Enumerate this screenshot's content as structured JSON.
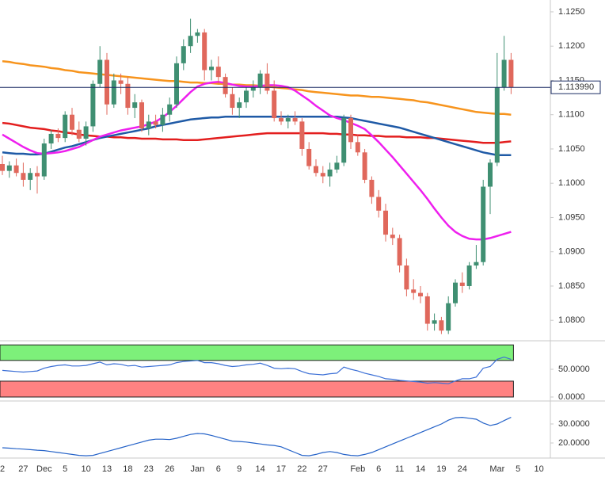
{
  "chart_data": [
    {
      "type": "candlestick",
      "categories": [
        "2",
        null,
        null,
        "27",
        null,
        null,
        "Dec",
        null,
        null,
        "5",
        null,
        null,
        "10",
        null,
        null,
        "13",
        null,
        null,
        "18",
        null,
        null,
        "23",
        null,
        null,
        "26",
        null,
        null,
        null,
        "Jan",
        null,
        null,
        "6",
        null,
        null,
        "9",
        null,
        null,
        "14",
        null,
        null,
        "17",
        null,
        null,
        "22",
        null,
        null,
        "27",
        null,
        null,
        null,
        null,
        "Feb",
        null,
        null,
        "6",
        null,
        null,
        "11",
        null,
        null,
        "14",
        null,
        null,
        "19",
        null,
        null,
        "24",
        null,
        null,
        null,
        null,
        "Mar",
        null,
        null,
        "5",
        null,
        null,
        "10"
      ],
      "open": [
        1.1028,
        1.1018,
        1.1026,
        1.1015,
        1.1005,
        1.1015,
        1.101,
        1.1058,
        1.1072,
        1.1066,
        1.11,
        1.1078,
        1.1065,
        1.1083,
        1.1145,
        1.118,
        1.1115,
        1.115,
        1.1145,
        1.111,
        1.1118,
        1.108,
        1.109,
        1.1085,
        1.11,
        1.1115,
        1.1175,
        1.12,
        1.1215,
        1.122,
        1.1165,
        1.117,
        1.1155,
        1.113,
        1.111,
        1.1118,
        1.1135,
        1.114,
        1.116,
        1.1135,
        1.1095,
        1.109,
        1.1095,
        1.109,
        1.105,
        1.1025,
        1.1015,
        1.101,
        1.102,
        1.103,
        1.1095,
        1.106,
        1.1045,
        1.1005,
        1.098,
        1.096,
        1.0925,
        1.092,
        1.088,
        1.0845,
        1.084,
        1.0835,
        1.0795,
        1.08,
        1.0785,
        1.0825,
        1.0855,
        1.085,
        1.088,
        1.0885,
        1.0995,
        1.103,
        1.114,
        1.118,
        null,
        null,
        null,
        null
      ],
      "high": [
        1.104,
        1.1032,
        1.1036,
        1.103,
        1.1022,
        1.1025,
        1.1065,
        1.1078,
        1.108,
        1.1105,
        1.111,
        1.109,
        1.109,
        1.115,
        1.12,
        1.119,
        1.116,
        1.116,
        1.1155,
        1.113,
        1.1122,
        1.11,
        1.11,
        1.111,
        1.1125,
        1.1185,
        1.121,
        1.124,
        1.1225,
        1.1225,
        1.118,
        1.1185,
        1.116,
        1.114,
        1.1125,
        1.114,
        1.115,
        1.1165,
        1.1175,
        1.115,
        1.1105,
        1.11,
        1.1105,
        1.1095,
        1.106,
        1.1035,
        1.1025,
        1.103,
        1.104,
        1.11,
        1.11,
        1.107,
        1.105,
        1.101,
        1.099,
        1.097,
        1.0935,
        1.0925,
        1.089,
        1.086,
        1.085,
        1.084,
        1.081,
        1.0805,
        1.0835,
        1.086,
        1.087,
        1.0885,
        1.091,
        1.1005,
        1.1035,
        1.119,
        1.1215,
        1.119,
        null,
        null,
        null,
        null
      ],
      "low": [
        1.1012,
        1.1008,
        1.101,
        1.0995,
        1.099,
        1.0985,
        1.1005,
        1.105,
        1.106,
        1.106,
        1.107,
        1.106,
        1.1055,
        1.1075,
        1.114,
        1.11,
        1.111,
        1.113,
        1.11,
        1.1095,
        1.1075,
        1.107,
        1.108,
        1.1075,
        1.109,
        1.111,
        1.1165,
        1.119,
        1.1205,
        1.115,
        1.115,
        1.1145,
        1.1125,
        1.11,
        1.1095,
        1.111,
        1.1125,
        1.113,
        1.113,
        1.109,
        1.1085,
        1.108,
        1.1085,
        1.104,
        1.102,
        1.101,
        1.1,
        1.0995,
        1.1015,
        1.1025,
        1.105,
        1.104,
        1.1,
        1.097,
        1.095,
        1.0915,
        1.091,
        1.087,
        1.0835,
        1.083,
        1.0825,
        1.0785,
        1.0785,
        1.078,
        1.078,
        1.082,
        1.084,
        1.0845,
        1.0875,
        1.088,
        1.0955,
        1.1025,
        1.1135,
        1.113,
        null,
        null,
        null,
        null
      ],
      "close": [
        1.1018,
        1.1026,
        1.1015,
        1.1005,
        1.1015,
        1.101,
        1.1058,
        1.1072,
        1.1066,
        1.11,
        1.1078,
        1.1065,
        1.1083,
        1.1145,
        1.118,
        1.1115,
        1.115,
        1.1145,
        1.111,
        1.1118,
        1.108,
        1.109,
        1.1085,
        1.11,
        1.1115,
        1.1175,
        1.12,
        1.1215,
        1.122,
        1.1165,
        1.117,
        1.1155,
        1.113,
        1.111,
        1.1118,
        1.1135,
        1.114,
        1.116,
        1.1135,
        1.1095,
        1.109,
        1.1095,
        1.109,
        1.105,
        1.1025,
        1.1015,
        1.101,
        1.102,
        1.103,
        1.1095,
        1.106,
        1.1045,
        1.1005,
        1.098,
        1.096,
        1.0925,
        1.092,
        1.088,
        1.0845,
        1.084,
        1.0835,
        1.0795,
        1.08,
        1.0785,
        1.0825,
        1.0855,
        1.085,
        1.088,
        1.0885,
        1.0995,
        1.103,
        1.114,
        1.118,
        1.11399,
        null,
        null,
        null,
        null
      ],
      "up_color": "#3f8f72",
      "down_color": "#e0685c",
      "series": [
        {
          "color": "#f7941d",
          "values": [
            1.1178,
            1.1177,
            1.1175,
            1.1174,
            1.1172,
            1.1171,
            1.117,
            1.1168,
            1.1167,
            1.1165,
            1.1164,
            1.1162,
            1.1161,
            1.116,
            1.1159,
            1.1158,
            1.1157,
            1.1156,
            1.1155,
            1.1154,
            1.1153,
            1.1152,
            1.1151,
            1.115,
            1.1149,
            1.1149,
            1.1148,
            1.1147,
            1.1147,
            1.1146,
            1.1146,
            1.1145,
            1.1145,
            1.1144,
            1.1144,
            1.1143,
            1.1143,
            1.1142,
            1.1141,
            1.114,
            1.1139,
            1.1138,
            1.1137,
            1.1136,
            1.1134,
            1.1133,
            1.1132,
            1.1131,
            1.113,
            1.1129,
            1.1128,
            1.1128,
            1.1127,
            1.1126,
            1.1126,
            1.1125,
            1.1124,
            1.1123,
            1.1122,
            1.1121,
            1.1119,
            1.1118,
            1.1116,
            1.1114,
            1.1112,
            1.111,
            1.1108,
            1.1106,
            1.1104,
            1.1103,
            1.1102,
            1.1101,
            1.1101,
            1.11,
            null,
            null,
            null,
            null
          ]
        },
        {
          "color": "#e31e1e",
          "values": [
            1.1088,
            1.1087,
            1.1085,
            1.1083,
            1.1081,
            1.108,
            1.1079,
            1.1077,
            1.1076,
            1.1074,
            1.1073,
            1.1071,
            1.107,
            1.1069,
            1.1068,
            1.1068,
            1.1067,
            1.1067,
            1.1066,
            1.1066,
            1.1065,
            1.1065,
            1.1065,
            1.1064,
            1.1064,
            1.1064,
            1.1063,
            1.1063,
            1.1063,
            1.1064,
            1.1065,
            1.1066,
            1.1067,
            1.1068,
            1.1069,
            1.107,
            1.1071,
            1.1072,
            1.1073,
            1.1073,
            1.1073,
            1.1073,
            1.1073,
            1.1073,
            1.1073,
            1.1073,
            1.1073,
            1.1072,
            1.1072,
            1.1071,
            1.1071,
            1.107,
            1.107,
            1.1069,
            1.1069,
            1.1068,
            1.1068,
            1.1068,
            1.1067,
            1.1067,
            1.1067,
            1.1066,
            1.1066,
            1.1065,
            1.1064,
            1.1063,
            1.1062,
            1.1061,
            1.106,
            1.1059,
            1.1059,
            1.1059,
            1.106,
            1.1061,
            null,
            null,
            null,
            null
          ]
        },
        {
          "color": "#1f5aa6",
          "values": [
            1.1045,
            1.1044,
            1.1043,
            1.1043,
            1.1042,
            1.1042,
            1.1043,
            1.1046,
            1.1049,
            1.1052,
            1.1054,
            1.1057,
            1.106,
            1.1063,
            1.1066,
            1.1068,
            1.107,
            1.1072,
            1.1074,
            1.1076,
            1.1078,
            1.108,
            1.1083,
            1.1085,
            1.1087,
            1.1089,
            1.1091,
            1.1093,
            1.1094,
            1.1095,
            1.1096,
            1.1096,
            1.1097,
            1.1097,
            1.1097,
            1.1097,
            1.1097,
            1.1097,
            1.1097,
            1.1097,
            1.1097,
            1.1097,
            1.1097,
            1.1097,
            1.1097,
            1.1097,
            1.1097,
            1.1097,
            1.1097,
            1.1096,
            1.1095,
            1.1093,
            1.1091,
            1.1089,
            1.1087,
            1.1085,
            1.1083,
            1.1081,
            1.1078,
            1.1075,
            1.1072,
            1.1069,
            1.1066,
            1.1063,
            1.106,
            1.1057,
            1.1054,
            1.1051,
            1.1048,
            1.1045,
            1.1043,
            1.1041,
            1.1041,
            1.1041,
            null,
            null,
            null,
            null
          ]
        },
        {
          "color": "#ee1fee",
          "values": [
            1.1071,
            1.1065,
            1.1059,
            1.1053,
            1.1048,
            1.1044,
            1.1043,
            1.1044,
            1.1045,
            1.1047,
            1.105,
            1.1053,
            1.1058,
            1.1063,
            1.1068,
            1.1071,
            1.1074,
            1.1077,
            1.1079,
            1.1081,
            1.1083,
            1.1086,
            1.109,
            1.1096,
            1.1104,
            1.1113,
            1.1123,
            1.1133,
            1.1141,
            1.1145,
            1.1147,
            1.1148,
            1.1146,
            1.1144,
            1.1142,
            1.1141,
            1.1141,
            1.1142,
            1.1143,
            1.1143,
            1.1142,
            1.114,
            1.1135,
            1.1128,
            1.1121,
            1.1113,
            1.1106,
            1.1099,
            1.1095,
            1.1092,
            1.1088,
            1.1084,
            1.1079,
            1.107,
            1.106,
            1.1049,
            1.1038,
            1.1026,
            1.1014,
            1.1002,
            1.099,
            1.0977,
            1.0963,
            1.095,
            1.0938,
            1.0929,
            1.0923,
            1.0919,
            1.0918,
            1.0918,
            1.092,
            1.0923,
            1.0926,
            1.0929,
            null,
            null,
            null,
            null
          ]
        }
      ],
      "current_price": {
        "value": 1.11399,
        "label": "1.113990"
      },
      "ylim": [
        1.07725,
        1.12673
      ],
      "yticks": [
        {
          "value": 1.08,
          "label": "1.0800"
        },
        {
          "value": 1.085,
          "label": "1.0850"
        },
        {
          "value": 1.09,
          "label": "1.0900"
        },
        {
          "value": 1.095,
          "label": "1.0950"
        },
        {
          "value": 1.1,
          "label": "1.1000"
        },
        {
          "value": 1.105,
          "label": "1.1050"
        },
        {
          "value": 1.11,
          "label": "1.1100"
        },
        {
          "value": 1.115,
          "label": "1.1150"
        },
        {
          "value": 1.12,
          "label": "1.1200"
        },
        {
          "value": 1.125,
          "label": "1.1250"
        }
      ]
    },
    {
      "type": "line",
      "series": [
        {
          "color": "#3b6fd6",
          "values": [
            48,
            47,
            46,
            45,
            46,
            47,
            52,
            55,
            57,
            58,
            56,
            56,
            57,
            60,
            63,
            58,
            60,
            59,
            56,
            57,
            54,
            55,
            56,
            57,
            58,
            62,
            64,
            65,
            66,
            62,
            62,
            60,
            57,
            55,
            56,
            58,
            59,
            61,
            57,
            52,
            51,
            52,
            51,
            46,
            42,
            41,
            40,
            42,
            43,
            54,
            50,
            47,
            43,
            40,
            37,
            33,
            32,
            30,
            29,
            28,
            27,
            25,
            26,
            25,
            24,
            29,
            33,
            33,
            36,
            52,
            55,
            68,
            72,
            68,
            null,
            null,
            null,
            null
          ]
        }
      ],
      "bands": [
        {
          "range": [
            66,
            94
          ],
          "color": "#7df07a"
        },
        {
          "range": [
            0,
            28.6
          ],
          "color": "#ff8282"
        }
      ],
      "ylim": [
        -2.9,
        98.6
      ],
      "yticks": [
        {
          "value": 0,
          "label": "0.0000"
        },
        {
          "value": 50,
          "label": "50.0000"
        }
      ]
    },
    {
      "type": "line",
      "series": [
        {
          "color": "#2462c8",
          "values": [
            17.5,
            17.3,
            17,
            16.8,
            16.5,
            16.2,
            16,
            15.5,
            15,
            14.5,
            14,
            13.5,
            13.3,
            13.5,
            14.5,
            15.5,
            16.5,
            17.5,
            18.5,
            19.5,
            20.5,
            21.5,
            22,
            22,
            21.8,
            22.5,
            23.5,
            24.5,
            25,
            24.8,
            24,
            23,
            22,
            21,
            20.8,
            20.5,
            20,
            19.5,
            19,
            18.7,
            18,
            16.5,
            15,
            13.5,
            13.3,
            14,
            15,
            15.5,
            15,
            14,
            13.5,
            13.3,
            14,
            15,
            16.5,
            18,
            19.5,
            21,
            22.5,
            24,
            25.5,
            27,
            28.5,
            30,
            32,
            33.3,
            33.5,
            33,
            32.5,
            30.5,
            29.2,
            30,
            31.8,
            33.5,
            null,
            null,
            null,
            null
          ]
        }
      ],
      "ylim": [
        12.5,
        40.4
      ],
      "yticks": [
        {
          "value": 20,
          "label": "20.0000"
        },
        {
          "value": 30,
          "label": "30.0000"
        }
      ]
    }
  ]
}
